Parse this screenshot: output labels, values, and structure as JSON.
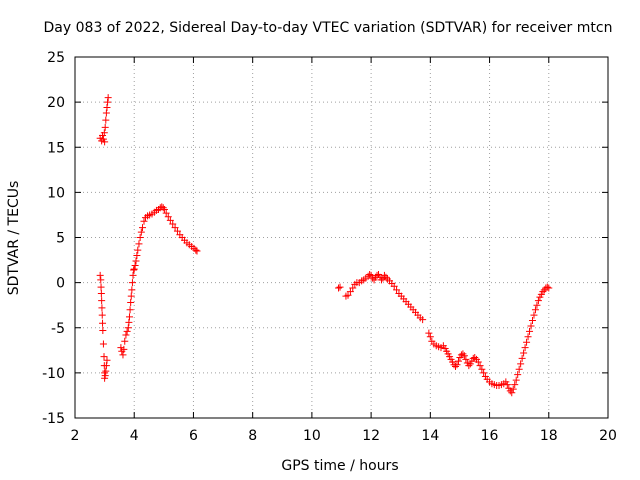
{
  "chart_data": {
    "type": "scatter",
    "title": "Day 083 of 2022, Sidereal Day-to-day VTEC variation (SDTVAR) for receiver mtcn",
    "xlabel": "GPS time / hours",
    "ylabel": "SDTVAR / TECUs",
    "xlim": [
      2,
      20
    ],
    "ylim": [
      -15,
      25
    ],
    "xticks": [
      2,
      4,
      6,
      8,
      10,
      12,
      14,
      16,
      18,
      20
    ],
    "yticks": [
      -15,
      -10,
      -5,
      0,
      5,
      10,
      15,
      20,
      25
    ],
    "xtick_labels": [
      "2",
      "4",
      "6",
      "8",
      "10",
      "12",
      "14",
      "16",
      "18",
      "20"
    ],
    "ytick_labels": [
      "-15",
      "-10",
      "-5",
      "0",
      "5",
      "10",
      "15",
      "20",
      "25"
    ],
    "grid": true,
    "marker": "+",
    "series": [
      {
        "name": "SDTVAR",
        "color": "#ff0000",
        "points": [
          [
            2.85,
            16.0
          ],
          [
            2.9,
            15.7
          ],
          [
            2.93,
            16.3
          ],
          [
            2.96,
            15.9
          ],
          [
            2.99,
            16.6
          ],
          [
            3.0,
            15.6
          ],
          [
            3.02,
            17.2
          ],
          [
            3.04,
            18.0
          ],
          [
            3.06,
            18.8
          ],
          [
            3.08,
            19.4
          ],
          [
            3.1,
            20.0
          ],
          [
            3.12,
            20.5
          ],
          [
            2.85,
            0.8
          ],
          [
            2.87,
            0.3
          ],
          [
            2.88,
            -0.5
          ],
          [
            2.89,
            -1.2
          ],
          [
            2.9,
            -2.0
          ],
          [
            2.91,
            -2.8
          ],
          [
            2.92,
            -3.6
          ],
          [
            2.93,
            -4.5
          ],
          [
            2.94,
            -5.3
          ],
          [
            2.96,
            -6.8
          ],
          [
            2.98,
            -8.2
          ],
          [
            2.99,
            -9.2
          ],
          [
            3.0,
            -10.0
          ],
          [
            3.0,
            -10.6
          ],
          [
            3.02,
            -10.3
          ],
          [
            3.04,
            -9.8
          ],
          [
            3.06,
            -9.2
          ],
          [
            3.08,
            -8.6
          ],
          [
            3.55,
            -7.2
          ],
          [
            3.58,
            -7.6
          ],
          [
            3.62,
            -8.0
          ],
          [
            3.65,
            -7.4
          ],
          [
            3.68,
            -6.5
          ],
          [
            3.72,
            -5.8
          ],
          [
            3.76,
            -5.4
          ],
          [
            3.8,
            -5.0
          ],
          [
            3.82,
            -4.4
          ],
          [
            3.84,
            -3.8
          ],
          [
            3.86,
            -3.0
          ],
          [
            3.88,
            -2.2
          ],
          [
            3.9,
            -1.5
          ],
          [
            3.92,
            -0.8
          ],
          [
            3.94,
            0.0
          ],
          [
            3.96,
            0.8
          ],
          [
            3.98,
            1.4
          ],
          [
            4.0,
            1.5
          ],
          [
            4.03,
            1.9
          ],
          [
            4.06,
            2.4
          ],
          [
            4.09,
            3.0
          ],
          [
            4.12,
            3.6
          ],
          [
            4.16,
            4.3
          ],
          [
            4.2,
            5.0
          ],
          [
            4.24,
            5.6
          ],
          [
            4.28,
            6.1
          ],
          [
            4.33,
            6.8
          ],
          [
            4.38,
            7.2
          ],
          [
            4.45,
            7.4
          ],
          [
            4.52,
            7.5
          ],
          [
            4.6,
            7.6
          ],
          [
            4.68,
            7.8
          ],
          [
            4.75,
            8.0
          ],
          [
            4.82,
            8.1
          ],
          [
            4.88,
            8.3
          ],
          [
            4.93,
            8.4
          ],
          [
            4.98,
            8.3
          ],
          [
            5.02,
            8.1
          ],
          [
            5.08,
            7.7
          ],
          [
            5.15,
            7.3
          ],
          [
            5.22,
            6.9
          ],
          [
            5.3,
            6.5
          ],
          [
            5.38,
            6.1
          ],
          [
            5.46,
            5.7
          ],
          [
            5.54,
            5.3
          ],
          [
            5.62,
            5.0
          ],
          [
            5.7,
            4.7
          ],
          [
            5.78,
            4.4
          ],
          [
            5.86,
            4.2
          ],
          [
            5.94,
            4.0
          ],
          [
            6.02,
            3.8
          ],
          [
            6.08,
            3.6
          ],
          [
            6.12,
            3.5
          ],
          [
            10.9,
            -0.6
          ],
          [
            10.95,
            -0.5
          ],
          [
            11.15,
            -1.5
          ],
          [
            11.22,
            -1.4
          ],
          [
            11.3,
            -1.0
          ],
          [
            11.38,
            -0.6
          ],
          [
            11.45,
            -0.2
          ],
          [
            11.52,
            0.0
          ],
          [
            11.6,
            0.0
          ],
          [
            11.68,
            0.2
          ],
          [
            11.75,
            0.3
          ],
          [
            11.82,
            0.5
          ],
          [
            11.9,
            0.7
          ],
          [
            11.95,
            0.9
          ],
          [
            12.0,
            0.8
          ],
          [
            12.05,
            0.5
          ],
          [
            12.1,
            0.3
          ],
          [
            12.15,
            0.6
          ],
          [
            12.2,
            0.8
          ],
          [
            12.25,
            0.9
          ],
          [
            12.3,
            0.6
          ],
          [
            12.35,
            0.3
          ],
          [
            12.4,
            0.5
          ],
          [
            12.45,
            0.8
          ],
          [
            12.5,
            0.6
          ],
          [
            12.55,
            0.4
          ],
          [
            12.62,
            0.2
          ],
          [
            12.7,
            -0.1
          ],
          [
            12.78,
            -0.4
          ],
          [
            12.86,
            -0.8
          ],
          [
            12.94,
            -1.2
          ],
          [
            13.02,
            -1.5
          ],
          [
            13.1,
            -1.8
          ],
          [
            13.18,
            -2.1
          ],
          [
            13.26,
            -2.4
          ],
          [
            13.34,
            -2.7
          ],
          [
            13.42,
            -3.0
          ],
          [
            13.5,
            -3.3
          ],
          [
            13.58,
            -3.6
          ],
          [
            13.66,
            -3.9
          ],
          [
            13.74,
            -4.1
          ],
          [
            13.95,
            -5.6
          ],
          [
            14.0,
            -6.0
          ],
          [
            14.05,
            -6.5
          ],
          [
            14.12,
            -6.8
          ],
          [
            14.2,
            -7.0
          ],
          [
            14.28,
            -7.1
          ],
          [
            14.36,
            -7.2
          ],
          [
            14.44,
            -7.0
          ],
          [
            14.5,
            -7.3
          ],
          [
            14.55,
            -7.6
          ],
          [
            14.6,
            -7.9
          ],
          [
            14.65,
            -8.2
          ],
          [
            14.7,
            -8.5
          ],
          [
            14.75,
            -8.8
          ],
          [
            14.8,
            -9.1
          ],
          [
            14.85,
            -9.3
          ],
          [
            14.9,
            -9.1
          ],
          [
            14.95,
            -8.7
          ],
          [
            15.0,
            -8.3
          ],
          [
            15.05,
            -8.0
          ],
          [
            15.1,
            -7.9
          ],
          [
            15.15,
            -8.1
          ],
          [
            15.2,
            -8.5
          ],
          [
            15.25,
            -8.9
          ],
          [
            15.3,
            -9.2
          ],
          [
            15.35,
            -9.0
          ],
          [
            15.4,
            -8.7
          ],
          [
            15.45,
            -8.4
          ],
          [
            15.5,
            -8.3
          ],
          [
            15.56,
            -8.5
          ],
          [
            15.62,
            -8.8
          ],
          [
            15.68,
            -9.2
          ],
          [
            15.74,
            -9.6
          ],
          [
            15.8,
            -10.0
          ],
          [
            15.86,
            -10.4
          ],
          [
            15.92,
            -10.7
          ],
          [
            16.0,
            -11.0
          ],
          [
            16.08,
            -11.2
          ],
          [
            16.16,
            -11.3
          ],
          [
            16.24,
            -11.4
          ],
          [
            16.32,
            -11.4
          ],
          [
            16.4,
            -11.3
          ],
          [
            16.48,
            -11.2
          ],
          [
            16.55,
            -11.0
          ],
          [
            16.6,
            -11.3
          ],
          [
            16.65,
            -11.7
          ],
          [
            16.7,
            -12.0
          ],
          [
            16.75,
            -12.2
          ],
          [
            16.8,
            -11.8
          ],
          [
            16.85,
            -11.3
          ],
          [
            16.9,
            -10.8
          ],
          [
            16.95,
            -10.2
          ],
          [
            17.0,
            -9.6
          ],
          [
            17.05,
            -9.0
          ],
          [
            17.1,
            -8.4
          ],
          [
            17.15,
            -7.8
          ],
          [
            17.2,
            -7.2
          ],
          [
            17.25,
            -6.6
          ],
          [
            17.3,
            -6.0
          ],
          [
            17.35,
            -5.4
          ],
          [
            17.4,
            -4.8
          ],
          [
            17.45,
            -4.2
          ],
          [
            17.5,
            -3.6
          ],
          [
            17.55,
            -3.0
          ],
          [
            17.6,
            -2.5
          ],
          [
            17.65,
            -2.0
          ],
          [
            17.7,
            -1.6
          ],
          [
            17.75,
            -1.3
          ],
          [
            17.8,
            -1.0
          ],
          [
            17.85,
            -0.8
          ],
          [
            17.9,
            -0.6
          ],
          [
            17.95,
            -0.5
          ],
          [
            18.0,
            -0.6
          ]
        ]
      }
    ]
  }
}
